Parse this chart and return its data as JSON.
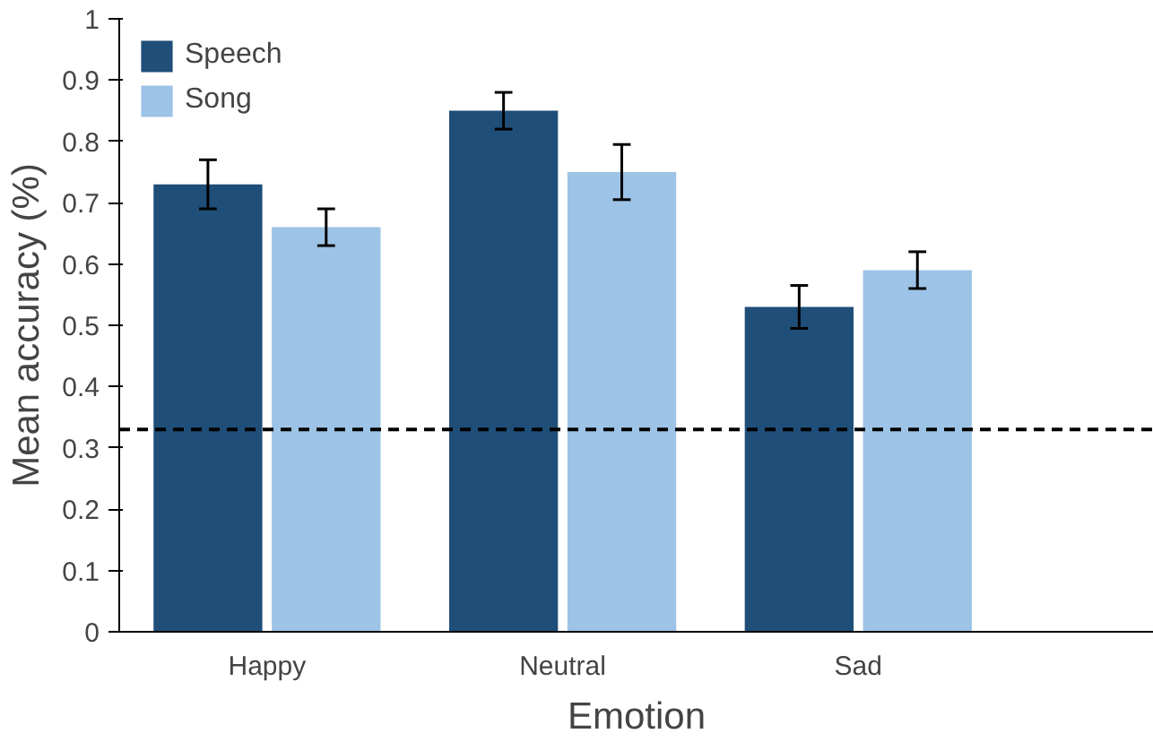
{
  "chart_data": {
    "type": "bar",
    "xlabel": "Emotion",
    "ylabel": "Mean accuracy (%)",
    "categories": [
      "Happy",
      "Neutral",
      "Sad"
    ],
    "series": [
      {
        "name": "Speech",
        "color": "#1f4e79",
        "values": [
          0.73,
          0.85,
          0.53
        ],
        "errors": [
          0.04,
          0.03,
          0.035
        ]
      },
      {
        "name": "Song",
        "color": "#9dc3e6",
        "values": [
          0.66,
          0.75,
          0.59
        ],
        "errors": [
          0.03,
          0.045,
          0.03
        ]
      }
    ],
    "ylim": [
      0,
      1
    ],
    "yticks": [
      0,
      0.1,
      0.2,
      0.3,
      0.4,
      0.5,
      0.6,
      0.7,
      0.8,
      0.9,
      1
    ],
    "ref_lines": [
      {
        "axis": "y",
        "value": 0.33,
        "color": "#000000",
        "line_style": "dashed"
      }
    ],
    "legend": "top left",
    "grid": false
  }
}
